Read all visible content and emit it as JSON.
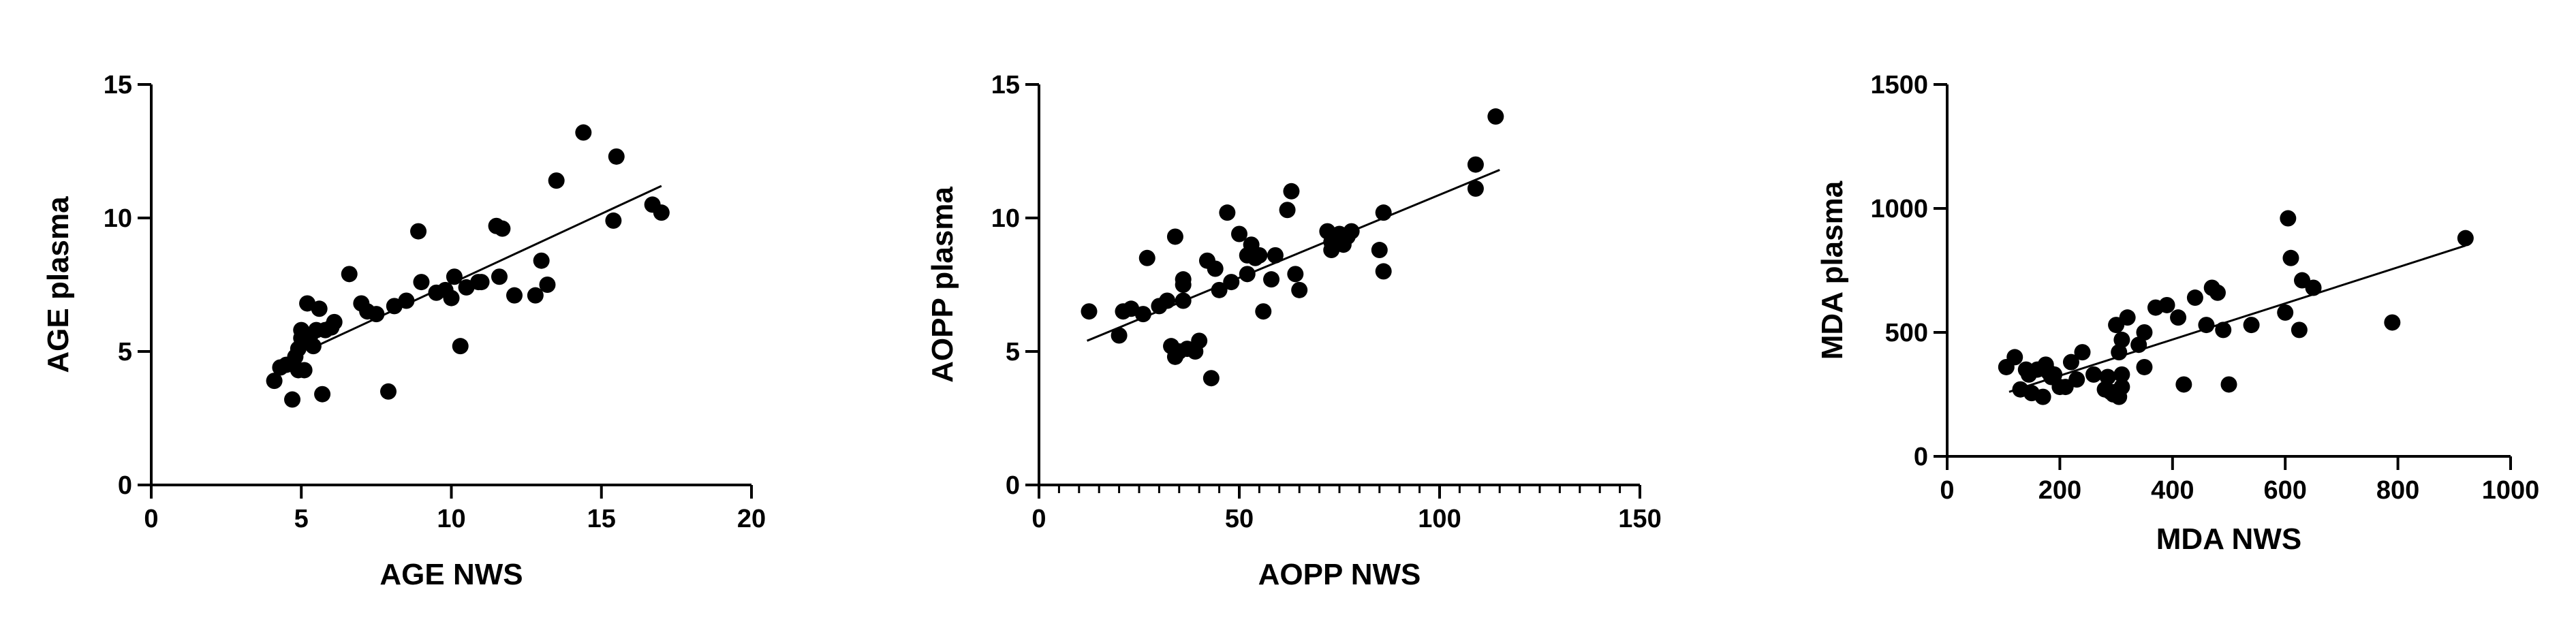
{
  "chart_data": [
    {
      "type": "scatter",
      "title": "",
      "xlabel": "AGE NWS",
      "ylabel": "AGE plasma",
      "xlim": [
        0,
        20
      ],
      "ylim": [
        0,
        15
      ],
      "xticks": [
        0,
        5,
        10,
        15,
        20
      ],
      "yticks": [
        0,
        5,
        10,
        15
      ],
      "xminor": [],
      "grid": false,
      "legend": "none",
      "color": "#000000",
      "fit_line": {
        "x": [
          5.5,
          17.0
        ],
        "y": [
          5.2,
          11.2
        ]
      },
      "points": [
        [
          4.1,
          3.9
        ],
        [
          4.3,
          4.4
        ],
        [
          4.5,
          4.5
        ],
        [
          4.7,
          3.2
        ],
        [
          4.8,
          4.8
        ],
        [
          4.9,
          5.1
        ],
        [
          4.9,
          4.3
        ],
        [
          5.0,
          5.5
        ],
        [
          5.0,
          5.8
        ],
        [
          5.1,
          4.3
        ],
        [
          5.2,
          6.8
        ],
        [
          5.3,
          5.6
        ],
        [
          5.4,
          5.2
        ],
        [
          5.5,
          5.8
        ],
        [
          5.6,
          6.6
        ],
        [
          5.7,
          3.4
        ],
        [
          5.8,
          5.8
        ],
        [
          6.0,
          5.9
        ],
        [
          6.1,
          6.1
        ],
        [
          6.6,
          7.9
        ],
        [
          7.0,
          6.8
        ],
        [
          7.2,
          6.5
        ],
        [
          7.5,
          6.4
        ],
        [
          7.9,
          3.5
        ],
        [
          8.1,
          6.7
        ],
        [
          8.5,
          6.9
        ],
        [
          8.9,
          9.5
        ],
        [
          9.0,
          7.6
        ],
        [
          9.5,
          7.2
        ],
        [
          9.8,
          7.3
        ],
        [
          10.0,
          7.0
        ],
        [
          10.1,
          7.8
        ],
        [
          10.3,
          5.2
        ],
        [
          10.5,
          7.4
        ],
        [
          10.9,
          7.6
        ],
        [
          11.0,
          7.6
        ],
        [
          11.5,
          9.7
        ],
        [
          11.6,
          7.8
        ],
        [
          11.7,
          9.6
        ],
        [
          12.1,
          7.1
        ],
        [
          12.8,
          7.1
        ],
        [
          13.0,
          8.4
        ],
        [
          13.2,
          7.5
        ],
        [
          13.5,
          11.4
        ],
        [
          14.4,
          13.2
        ],
        [
          15.4,
          9.9
        ],
        [
          15.5,
          12.3
        ],
        [
          16.7,
          10.5
        ],
        [
          17.0,
          10.2
        ]
      ]
    },
    {
      "type": "scatter",
      "title": "",
      "xlabel": "AOPP NWS",
      "ylabel": "AOPP plasma",
      "xlim": [
        0,
        150
      ],
      "ylim": [
        0,
        15
      ],
      "xticks": [
        0,
        50,
        100,
        150
      ],
      "yticks": [
        0,
        5,
        10,
        15
      ],
      "xminor": [
        5,
        10,
        15,
        20,
        25,
        30,
        35,
        40,
        45,
        55,
        60,
        65,
        70,
        75,
        80,
        85,
        90,
        95,
        105,
        110,
        115,
        120,
        125,
        130,
        135,
        140,
        145
      ],
      "grid": false,
      "legend": "none",
      "color": "#000000",
      "fit_line": {
        "x": [
          12,
          115
        ],
        "y": [
          5.4,
          11.8
        ]
      },
      "points": [
        [
          12.5,
          6.5
        ],
        [
          20,
          5.6
        ],
        [
          21,
          6.5
        ],
        [
          23,
          6.6
        ],
        [
          26,
          6.4
        ],
        [
          27,
          8.5
        ],
        [
          30,
          6.7
        ],
        [
          32,
          6.9
        ],
        [
          33,
          5.2
        ],
        [
          34,
          9.3
        ],
        [
          34,
          4.8
        ],
        [
          35,
          5.0
        ],
        [
          36,
          6.9
        ],
        [
          36,
          7.7
        ],
        [
          36,
          7.5
        ],
        [
          37,
          5.1
        ],
        [
          39,
          5.0
        ],
        [
          40,
          5.4
        ],
        [
          42,
          8.4
        ],
        [
          43,
          4.0
        ],
        [
          44,
          8.1
        ],
        [
          45,
          7.3
        ],
        [
          47,
          10.2
        ],
        [
          48,
          7.6
        ],
        [
          50,
          9.4
        ],
        [
          52,
          8.6
        ],
        [
          52,
          7.9
        ],
        [
          53,
          9.0
        ],
        [
          54,
          8.5
        ],
        [
          55,
          8.6
        ],
        [
          56,
          6.5
        ],
        [
          58,
          7.7
        ],
        [
          59,
          8.6
        ],
        [
          62,
          10.3
        ],
        [
          63,
          11.0
        ],
        [
          64,
          7.9
        ],
        [
          65,
          7.3
        ],
        [
          72,
          9.5
        ],
        [
          73,
          8.8
        ],
        [
          73,
          9.1
        ],
        [
          75,
          9.2
        ],
        [
          75,
          9.4
        ],
        [
          76,
          9.0
        ],
        [
          77,
          9.3
        ],
        [
          78,
          9.5
        ],
        [
          85,
          8.8
        ],
        [
          86,
          10.2
        ],
        [
          86,
          8.0
        ],
        [
          109,
          11.1
        ],
        [
          109,
          12.0
        ],
        [
          114,
          13.8
        ]
      ]
    },
    {
      "type": "scatter",
      "title": "",
      "xlabel": "MDA NWS",
      "ylabel": "MDA plasma",
      "xlim": [
        0,
        1000
      ],
      "ylim": [
        0,
        1500
      ],
      "xticks": [
        0,
        200,
        400,
        600,
        800,
        1000
      ],
      "yticks": [
        0,
        500,
        1000,
        1500
      ],
      "xminor": [],
      "grid": false,
      "legend": "none",
      "color": "#000000",
      "fit_line": {
        "x": [
          110,
          920
        ],
        "y": [
          260,
          850
        ]
      },
      "points": [
        [
          105,
          360
        ],
        [
          120,
          400
        ],
        [
          130,
          270
        ],
        [
          140,
          350
        ],
        [
          145,
          330
        ],
        [
          150,
          255
        ],
        [
          160,
          350
        ],
        [
          170,
          240
        ],
        [
          175,
          370
        ],
        [
          180,
          340
        ],
        [
          185,
          320
        ],
        [
          190,
          330
        ],
        [
          200,
          280
        ],
        [
          210,
          280
        ],
        [
          220,
          380
        ],
        [
          230,
          310
        ],
        [
          240,
          420
        ],
        [
          260,
          330
        ],
        [
          280,
          270
        ],
        [
          285,
          320
        ],
        [
          290,
          260
        ],
        [
          295,
          250
        ],
        [
          300,
          260
        ],
        [
          300,
          530
        ],
        [
          305,
          420
        ],
        [
          305,
          240
        ],
        [
          310,
          280
        ],
        [
          310,
          330
        ],
        [
          310,
          470
        ],
        [
          320,
          560
        ],
        [
          340,
          450
        ],
        [
          350,
          360
        ],
        [
          350,
          500
        ],
        [
          370,
          600
        ],
        [
          390,
          610
        ],
        [
          410,
          560
        ],
        [
          420,
          290
        ],
        [
          440,
          640
        ],
        [
          460,
          530
        ],
        [
          470,
          680
        ],
        [
          480,
          660
        ],
        [
          490,
          510
        ],
        [
          500,
          290
        ],
        [
          540,
          530
        ],
        [
          600,
          580
        ],
        [
          605,
          960
        ],
        [
          610,
          800
        ],
        [
          625,
          510
        ],
        [
          630,
          710
        ],
        [
          650,
          680
        ],
        [
          790,
          540
        ],
        [
          920,
          880
        ]
      ]
    }
  ]
}
